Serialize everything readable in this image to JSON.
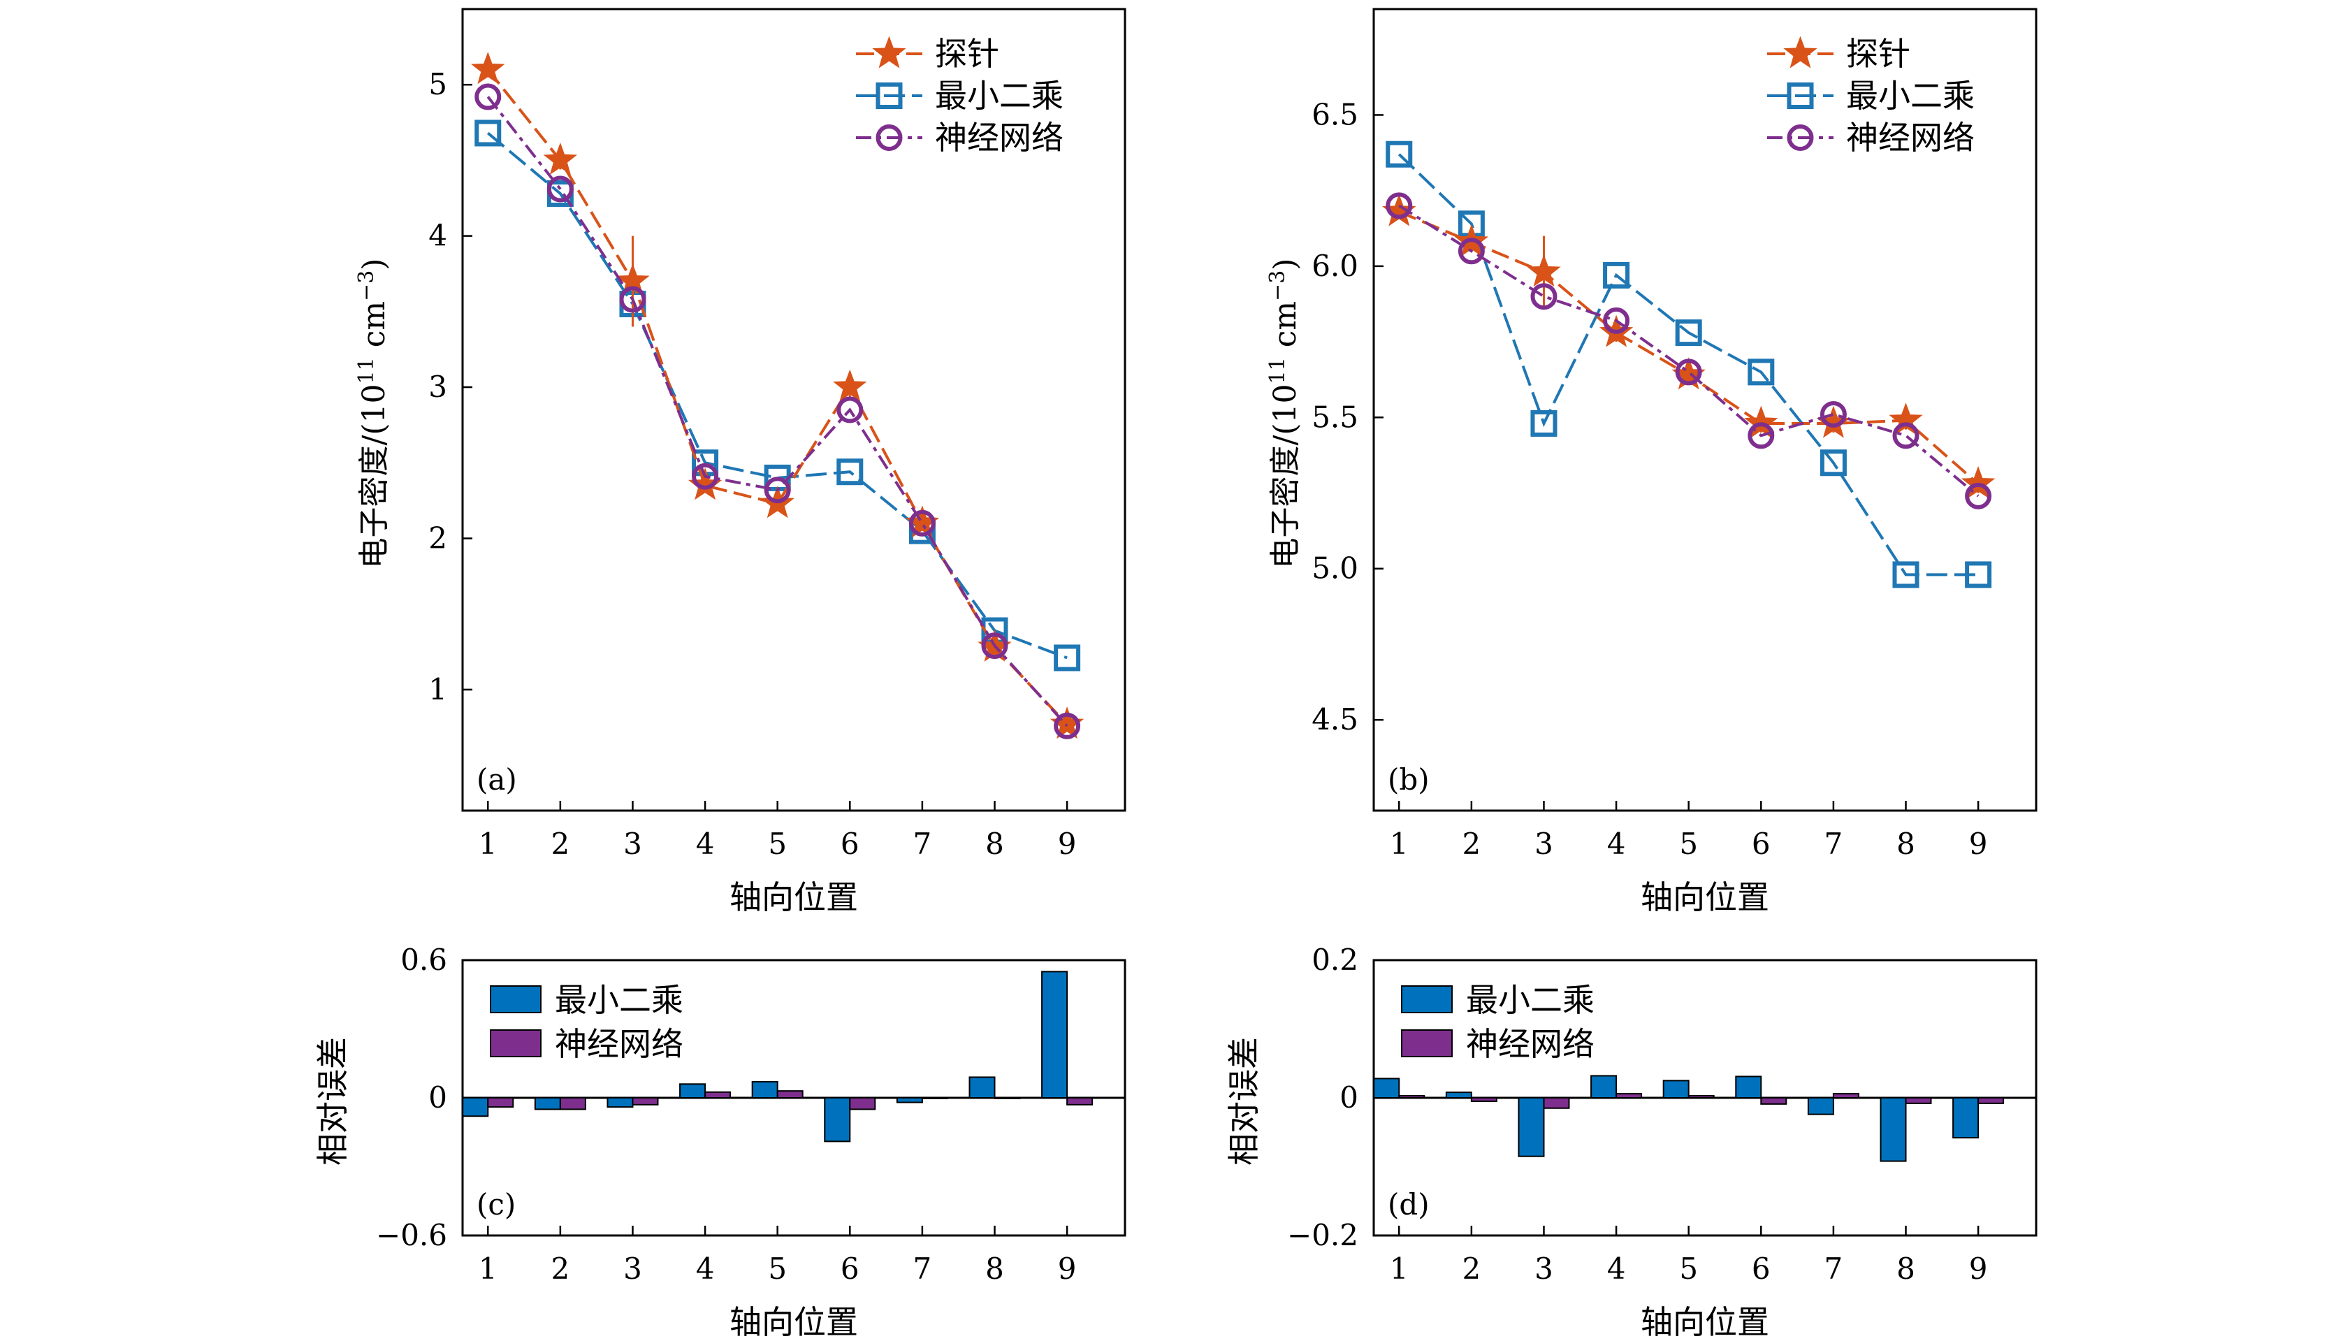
{
  "chart_data": [
    {
      "panel": "(a)",
      "type": "line",
      "xlabel": "轴向位置",
      "ylabel": "电子密度/(10¹¹ cm⁻³)",
      "ylabel_parts": {
        "main": "电子密度/(10",
        "sup1": "11",
        "mid": " cm",
        "sup2": "−3",
        "end": ")"
      },
      "x": [
        1,
        2,
        3,
        4,
        5,
        6,
        7,
        8,
        9
      ],
      "xlim": [
        0.65,
        9.8
      ],
      "ylim": [
        0.2,
        5.5
      ],
      "yticks": [
        1,
        2,
        3,
        4,
        5
      ],
      "ytick_labels": [
        "1",
        "2",
        "3",
        "4",
        "5"
      ],
      "legend": "top-right",
      "series": [
        {
          "name": "探针",
          "marker": "star",
          "color": "#d95319",
          "values": [
            5.1,
            4.5,
            3.7,
            2.35,
            2.23,
            3.0,
            2.1,
            1.28,
            0.77
          ],
          "err": [
            0.05,
            0.06,
            0.3,
            0.05,
            0.05,
            0.08,
            0.04,
            0.04,
            0.04
          ]
        },
        {
          "name": "最小二乘",
          "marker": "square",
          "color": "#1f77b4",
          "values": [
            4.68,
            4.28,
            3.55,
            2.5,
            2.4,
            2.44,
            2.05,
            1.39,
            1.21
          ]
        },
        {
          "name": "神经网络",
          "marker": "circle",
          "color": "#7e2f8e",
          "values": [
            4.92,
            4.31,
            3.58,
            2.41,
            2.32,
            2.85,
            2.1,
            1.29,
            0.76
          ]
        }
      ]
    },
    {
      "panel": "(b)",
      "type": "line",
      "xlabel": "轴向位置",
      "ylabel": "电子密度/(10¹¹ cm⁻³)",
      "ylabel_parts": {
        "main": "电子密度/(10",
        "sup1": "11",
        "mid": " cm",
        "sup2": "−3",
        "end": ")"
      },
      "x": [
        1,
        2,
        3,
        4,
        5,
        6,
        7,
        8,
        9
      ],
      "xlim": [
        0.65,
        9.8
      ],
      "ylim": [
        4.2,
        6.85
      ],
      "yticks": [
        4.5,
        5.0,
        5.5,
        6.0,
        6.5
      ],
      "ytick_labels": [
        "4.5",
        "5.0",
        "5.5",
        "6.0",
        "6.5"
      ],
      "legend": "top-right",
      "series": [
        {
          "name": "探针",
          "marker": "star",
          "color": "#d95319",
          "values": [
            6.18,
            6.08,
            5.98,
            5.78,
            5.64,
            5.48,
            5.48,
            5.49,
            5.28
          ],
          "err": [
            0.02,
            0.02,
            0.12,
            0.03,
            0.03,
            0.03,
            0.03,
            0.03,
            0.03
          ]
        },
        {
          "name": "最小二乘",
          "marker": "square",
          "color": "#1f77b4",
          "values": [
            6.37,
            6.14,
            5.48,
            5.97,
            5.78,
            5.65,
            5.35,
            4.98,
            4.98
          ]
        },
        {
          "name": "神经网络",
          "marker": "circle",
          "color": "#7e2f8e",
          "values": [
            6.2,
            6.05,
            5.9,
            5.82,
            5.65,
            5.44,
            5.51,
            5.44,
            5.24
          ]
        }
      ]
    },
    {
      "panel": "(c)",
      "type": "bar",
      "xlabel": "轴向位置",
      "ylabel": "相对误差",
      "categories": [
        "1",
        "2",
        "3",
        "4",
        "5",
        "6",
        "7",
        "8",
        "9"
      ],
      "ylim": [
        -0.6,
        0.6
      ],
      "yticks": [
        -0.6,
        0,
        0.6
      ],
      "ytick_labels": [
        "−0.6",
        "0",
        "0.6"
      ],
      "legend": "top-left",
      "series": [
        {
          "name": "最小二乘",
          "color": "#0072bd",
          "values": [
            -0.08,
            -0.05,
            -0.04,
            0.06,
            0.07,
            -0.19,
            -0.02,
            0.09,
            0.55
          ]
        },
        {
          "name": "神经网络",
          "color": "#7e2f8e",
          "values": [
            -0.04,
            -0.05,
            -0.03,
            0.025,
            0.03,
            -0.05,
            0.0,
            0.0,
            -0.03
          ]
        }
      ]
    },
    {
      "panel": "(d)",
      "type": "bar",
      "xlabel": "轴向位置",
      "ylabel": "相对误差",
      "categories": [
        "1",
        "2",
        "3",
        "4",
        "5",
        "6",
        "7",
        "8",
        "9"
      ],
      "ylim": [
        -0.2,
        0.2
      ],
      "yticks": [
        -0.2,
        0,
        0.2
      ],
      "ytick_labels": [
        "−0.2",
        "0",
        "0.2"
      ],
      "legend": "top-left",
      "series": [
        {
          "name": "最小二乘",
          "color": "#0072bd",
          "values": [
            0.028,
            0.008,
            -0.085,
            0.032,
            0.025,
            0.031,
            -0.024,
            -0.092,
            -0.058
          ]
        },
        {
          "name": "神经网络",
          "color": "#7e2f8e",
          "values": [
            0.003,
            -0.005,
            -0.015,
            0.006,
            0.003,
            -0.009,
            0.006,
            -0.008,
            -0.008
          ]
        }
      ]
    }
  ]
}
